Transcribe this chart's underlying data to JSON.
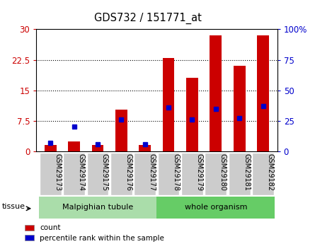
{
  "title": "GDS732 / 151771_at",
  "categories": [
    "GSM29173",
    "GSM29174",
    "GSM29175",
    "GSM29176",
    "GSM29177",
    "GSM29178",
    "GSM29179",
    "GSM29180",
    "GSM29181",
    "GSM29182"
  ],
  "counts": [
    1.5,
    2.5,
    1.5,
    10.2,
    1.5,
    23.0,
    18.0,
    28.5,
    21.0,
    28.5
  ],
  "percentiles": [
    7,
    20,
    6,
    26,
    6,
    36,
    26,
    35,
    27,
    37
  ],
  "left_ylim": [
    0,
    30
  ],
  "right_ylim": [
    0,
    100
  ],
  "left_yticks": [
    0,
    7.5,
    15,
    22.5,
    30
  ],
  "right_yticks": [
    0,
    25,
    50,
    75,
    100
  ],
  "bar_color": "#cc0000",
  "dot_color": "#0000cc",
  "group_labels": [
    "Malpighian tubule",
    "whole organism"
  ],
  "group_bg_colors": [
    "#aaddaa",
    "#66cc66"
  ],
  "tissue_label": "tissue",
  "legend_count_label": "count",
  "legend_pct_label": "percentile rank within the sample",
  "bar_width": 0.5,
  "left_tick_color": "#cc0000",
  "right_tick_color": "#0000cc",
  "tick_label_bg": "#cccccc",
  "plot_bg": "white"
}
